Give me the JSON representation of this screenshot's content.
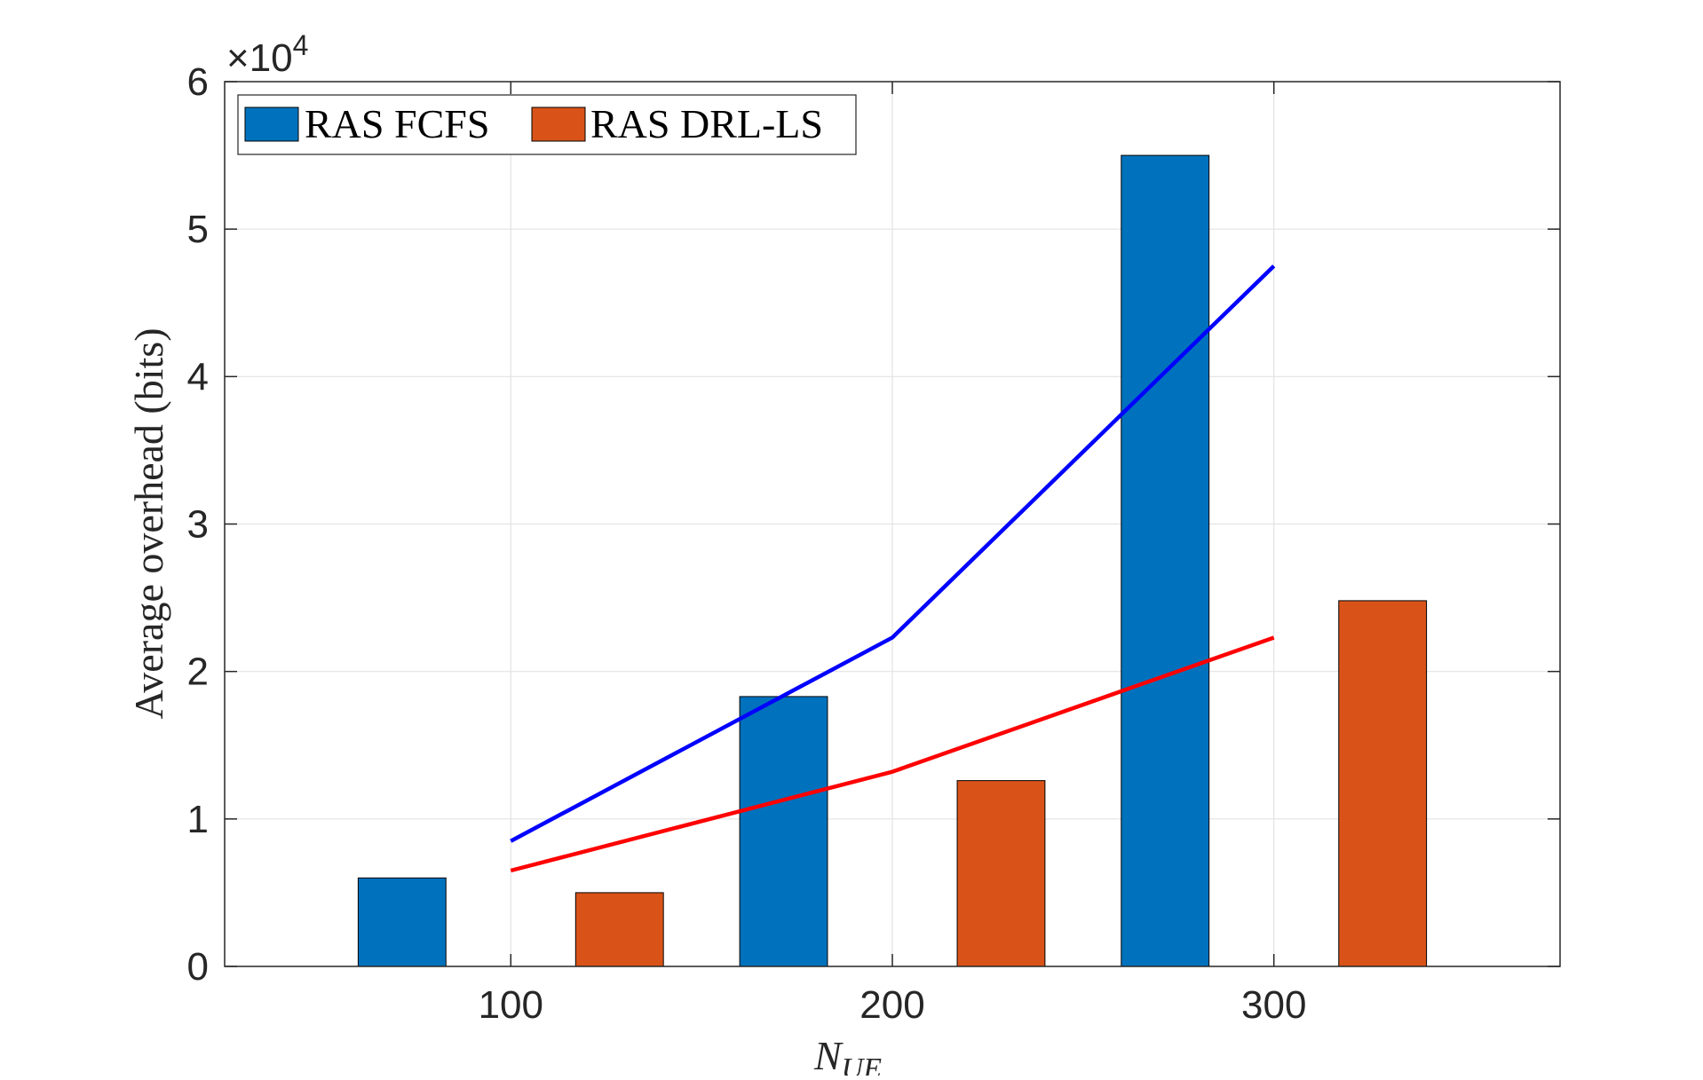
{
  "chart_data": {
    "type": "bar",
    "categories": [
      "100",
      "200",
      "300"
    ],
    "x": [
      100,
      200,
      300
    ],
    "series": [
      {
        "name": "RAS FCFS",
        "kind": "bar",
        "color": "#0072BD",
        "values": [
          6000,
          18300,
          55000
        ]
      },
      {
        "name": "RAS DRL-LS",
        "kind": "bar",
        "color": "#D95319",
        "values": [
          5000,
          12600,
          24800
        ]
      },
      {
        "name": "",
        "kind": "line",
        "color": "#0000FF",
        "values": [
          8500,
          22300,
          47500
        ]
      },
      {
        "name": "",
        "kind": "line",
        "color": "#FF0000",
        "values": [
          6500,
          13200,
          22300
        ]
      }
    ],
    "xlim": [
      25,
      375
    ],
    "ylim": [
      0,
      60000
    ],
    "yticks": [
      0,
      1,
      2,
      3,
      4,
      5,
      6
    ],
    "ytick_scale": 10000,
    "multiplier_label": {
      "base": "×10",
      "exponent": "4"
    },
    "xlabel": {
      "main": "N",
      "sub": "UE"
    },
    "ylabel": "Average overhead (bits)",
    "grid": true,
    "legend_position": "top-left"
  }
}
